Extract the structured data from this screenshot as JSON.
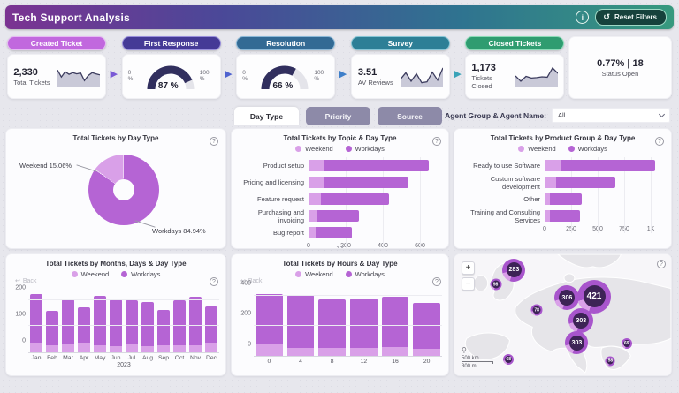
{
  "header": {
    "title": "Tech Support Analysis",
    "reset_label": "Reset Filters"
  },
  "colors": {
    "weekend": "#d9a0e8",
    "workdays": "#b564d4",
    "gauge_fill": "#312f5e",
    "gauge_track": "#e4e4ea"
  },
  "flow": {
    "stages": [
      {
        "label": "Created Ticket",
        "type": "kpi",
        "value": "2,330",
        "caption": "Total Tickets",
        "spark": [
          78,
          45,
          70,
          58,
          66,
          60,
          64,
          28,
          52,
          66,
          60,
          55
        ]
      },
      {
        "label": "First Response",
        "type": "gauge",
        "percent": 87,
        "display": "87 %",
        "min_label": "0 %",
        "max_label": "100 %"
      },
      {
        "label": "Resolution",
        "type": "gauge",
        "percent": 66,
        "display": "66 %",
        "min_label": "0 %",
        "max_label": "100 %"
      },
      {
        "label": "Survey",
        "type": "kpi",
        "value": "3.51",
        "caption": "AV Reviews",
        "spark": [
          35,
          65,
          25,
          60,
          18,
          22,
          68,
          30,
          88
        ]
      },
      {
        "label": "Closed Tickets",
        "type": "kpi",
        "value": "1,173",
        "caption": "Tickets Closed",
        "spark": [
          50,
          25,
          48,
          40,
          42,
          46,
          44,
          88,
          62
        ]
      }
    ],
    "status_card": {
      "value": "0.77% | 18",
      "caption": "Status Open"
    }
  },
  "tabs": [
    {
      "label": "Day Type",
      "active": true
    },
    {
      "label": "Priority",
      "active": false
    },
    {
      "label": "Source",
      "active": false
    }
  ],
  "agent_filter": {
    "label": "Agent Group & Agent Name:",
    "value": "All"
  },
  "legend": {
    "weekend": "Weekend",
    "workdays": "Workdays"
  },
  "back_label": "Back",
  "chart_data": [
    {
      "id": "day-type-donut",
      "type": "pie",
      "title": "Total Tickets by Day Type",
      "slices": [
        {
          "label": "Weekend",
          "pct": 15.06
        },
        {
          "label": "Workdays",
          "pct": 84.94
        }
      ],
      "callouts": {
        "weekend": "Weekend 15.06%",
        "workdays": "Workdays 84.94%"
      },
      "legend_position": "none"
    },
    {
      "id": "topic-bars",
      "type": "bar",
      "orientation": "horizontal",
      "title": "Total Tickets by Topic & Day Type",
      "categories": [
        "Product setup",
        "Pricing and licensing",
        "Feature request",
        "Purchasing and invoicing",
        "Bug report"
      ],
      "series": [
        {
          "name": "Weekend",
          "values": [
            80,
            78,
            65,
            42,
            35
          ]
        },
        {
          "name": "Workdays",
          "values": [
            550,
            447,
            355,
            223,
            190
          ]
        }
      ],
      "xticks": [
        "0",
        "200",
        "400",
        "600"
      ],
      "xmax": 700,
      "grid": true,
      "legend_position": "top"
    },
    {
      "id": "product-bars",
      "type": "bar",
      "orientation": "horizontal",
      "title": "Total Tickets by Product Group & Day Type",
      "categories": [
        "Ready to use Software",
        "Custom software development",
        "Other",
        "Training and Consulting Services"
      ],
      "series": [
        {
          "name": "Weekend",
          "values": [
            150,
            105,
            45,
            45
          ]
        },
        {
          "name": "Workdays",
          "values": [
            860,
            545,
            295,
            275
          ]
        }
      ],
      "xticks": [
        "0",
        "250",
        "500",
        "750",
        "1K"
      ],
      "xmax": 1100,
      "grid": true,
      "legend_position": "top"
    },
    {
      "id": "months-bars",
      "type": "bar",
      "orientation": "vertical",
      "title": "Total Tickets by Months, Days & Day Type",
      "categories": [
        "Jan",
        "Feb",
        "Mar",
        "Apr",
        "May",
        "Jun",
        "Jul",
        "Aug",
        "Sep",
        "Oct",
        "Nov",
        "Dec"
      ],
      "series": [
        {
          "name": "Weekend",
          "values": [
            37,
            27,
            33,
            38,
            28,
            24,
            30,
            25,
            26,
            27,
            28,
            38
          ]
        },
        {
          "name": "Workdays",
          "values": [
            185,
            133,
            169,
            134,
            190,
            178,
            170,
            168,
            138,
            172,
            184,
            137
          ]
        }
      ],
      "yticks": [
        0,
        100,
        200
      ],
      "ymax": 240,
      "xlabel": "2023",
      "grid": true,
      "legend_position": "top"
    },
    {
      "id": "hours-bars",
      "type": "bar",
      "orientation": "vertical",
      "title": "Total Tickets by Hours & Day Type",
      "categories": [
        "0",
        "4",
        "8",
        "12",
        "16",
        "20"
      ],
      "series": [
        {
          "name": "Weekend",
          "values": [
            75,
            52,
            50,
            52,
            57,
            45
          ]
        },
        {
          "name": "Workdays",
          "values": [
            335,
            351,
            328,
            329,
            339,
            310
          ]
        }
      ],
      "yticks": [
        0,
        200,
        400
      ],
      "ymax": 440,
      "grid": true,
      "legend_position": "top"
    },
    {
      "id": "europe-map",
      "type": "map",
      "bubbles": [
        {
          "value": "283",
          "x": 27.5,
          "y": 13,
          "size": 26
        },
        {
          "value": "98",
          "x": 19,
          "y": 25,
          "size": 13
        },
        {
          "value": "306",
          "x": 52,
          "y": 36,
          "size": 28
        },
        {
          "value": "421",
          "x": 64.5,
          "y": 35,
          "size": 38
        },
        {
          "value": "303",
          "x": 58.5,
          "y": 55,
          "size": 28
        },
        {
          "value": "303",
          "x": 56.5,
          "y": 73,
          "size": 26
        },
        {
          "value": "78",
          "x": 38,
          "y": 46,
          "size": 13
        },
        {
          "value": "68",
          "x": 25,
          "y": 87,
          "size": 12
        },
        {
          "value": "69",
          "x": 79.5,
          "y": 74,
          "size": 12
        },
        {
          "value": "58",
          "x": 72,
          "y": 88,
          "size": 11
        }
      ],
      "scale_km": "500 km",
      "scale_mi": "300 mi",
      "zoom_in": "+",
      "zoom_out": "−"
    }
  ]
}
